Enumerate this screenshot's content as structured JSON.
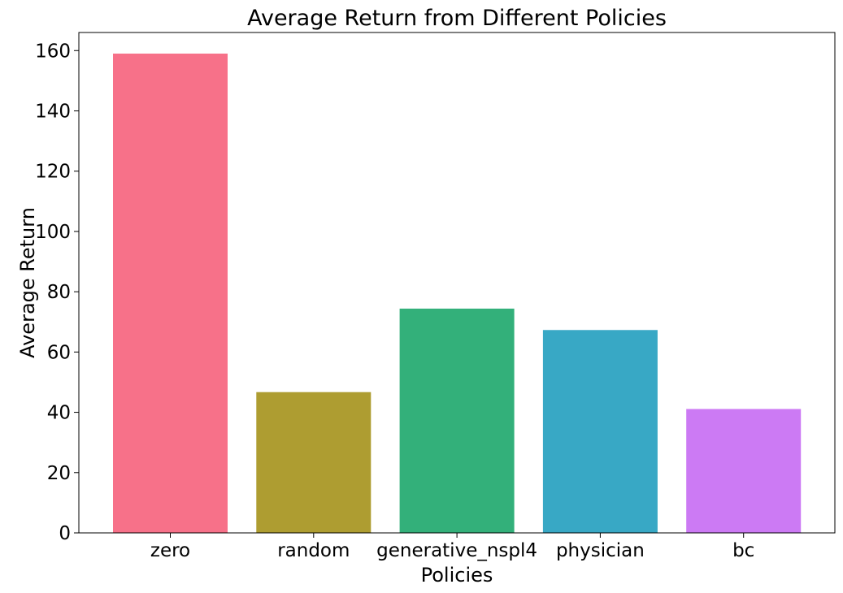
{
  "chart_data": {
    "type": "bar",
    "title": "Average Return from Different Policies",
    "xlabel": "Policies",
    "ylabel": "Average Return",
    "categories": [
      "zero",
      "random",
      "generative_nspl4",
      "physician",
      "bc"
    ],
    "values": [
      159.0,
      46.7,
      74.4,
      67.3,
      41.1
    ],
    "colors": [
      "#f77189",
      "#ae9d31",
      "#33b07a",
      "#38a8c5",
      "#cc7af4"
    ],
    "ylim": [
      0,
      166
    ],
    "yticks": [
      0,
      20,
      40,
      60,
      80,
      100,
      120,
      140,
      160
    ],
    "grid": false,
    "legend": "none"
  }
}
